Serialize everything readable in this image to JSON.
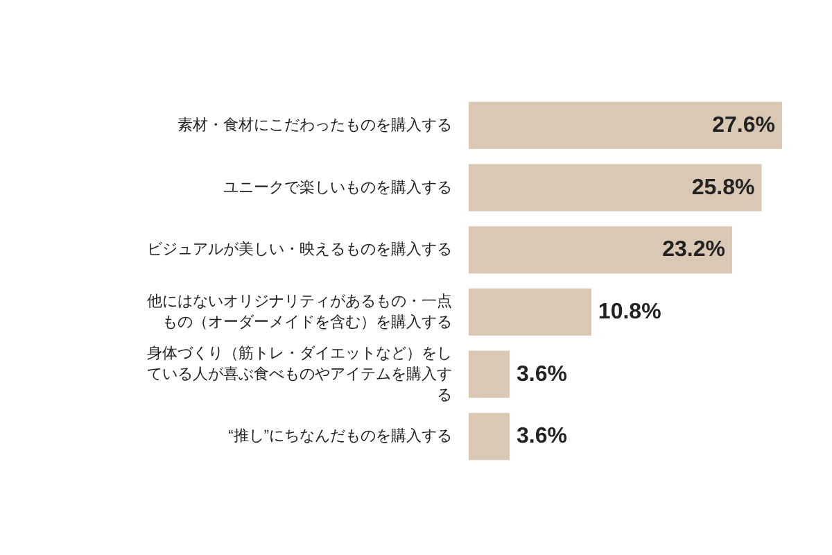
{
  "chart_data": {
    "type": "bar",
    "orientation": "horizontal",
    "categories": [
      "素材・食材にこだわったものを購入する",
      "ユニークで楽しいものを購入する",
      "ビジュアルが美しい・映えるものを購入する",
      "他にはないオリジナリティがあるもの・一点もの（オーダーメイドを含む）を購入する",
      "身体づくり（筋トレ・ダイエットなど）をしている人が喜ぶ食べものやアイテムを購入する",
      "“推し”にちなんだものを購入する"
    ],
    "values": [
      27.6,
      25.8,
      23.2,
      10.8,
      3.6,
      3.6
    ],
    "value_labels": [
      "27.6%",
      "25.8%",
      "23.2%",
      "10.8%",
      "3.6%",
      "3.6%"
    ],
    "color": "#d9c8b4"
  }
}
